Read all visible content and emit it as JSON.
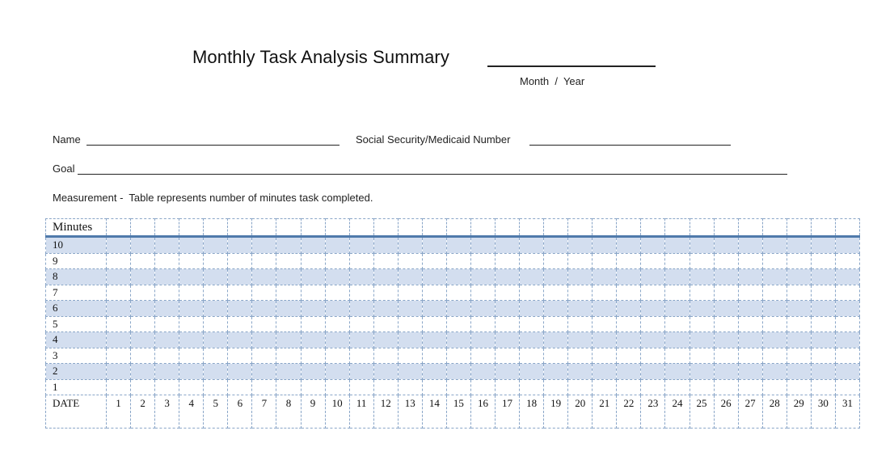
{
  "header": {
    "title": "Monthly Task Analysis Summary",
    "month_year_label": "Month  /  Year"
  },
  "fields": {
    "name_label": "Name",
    "ssn_label": "Social Security/Medicaid Number",
    "goal_label": "Goal",
    "measurement": "Measurement -  Table represents number of minutes task completed."
  },
  "table": {
    "corner_label": "Minutes",
    "minute_rows": [
      "10",
      "9",
      "8",
      "7",
      "6",
      "5",
      "4",
      "3",
      "2",
      "1"
    ],
    "date_label": "DATE",
    "days": [
      "1",
      "2",
      "3",
      "4",
      "5",
      "6",
      "7",
      "8",
      "9",
      "10",
      "11",
      "12",
      "13",
      "14",
      "15",
      "16",
      "17",
      "18",
      "19",
      "20",
      "21",
      "22",
      "23",
      "24",
      "25",
      "26",
      "27",
      "28",
      "29",
      "30",
      "31"
    ],
    "shade_color": "#d3deef",
    "accent_color": "#4f7aab",
    "grid_color": "#8aa6c8"
  }
}
